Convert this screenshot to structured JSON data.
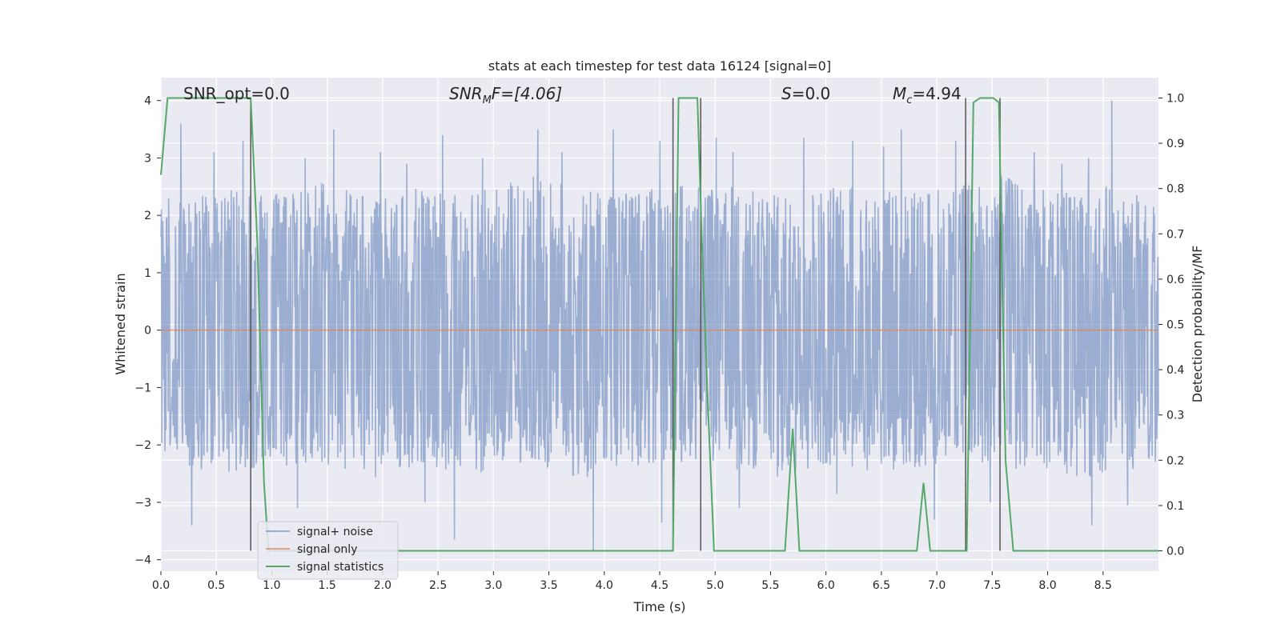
{
  "chart_data": {
    "type": "line",
    "title": "stats at each timestep for test data 16124 [signal=0]",
    "xlabel": "Time (s)",
    "ylabel": "Whitened strain",
    "y2label": "Detection probability/MF",
    "xlim": [
      0.0,
      9.0
    ],
    "ylim": [
      -4.2,
      4.4
    ],
    "y2lim": [
      -0.045,
      1.045
    ],
    "x_ticks": [
      "0.0",
      "0.5",
      "1.0",
      "1.5",
      "2.0",
      "2.5",
      "3.0",
      "3.5",
      "4.0",
      "4.5",
      "5.0",
      "5.5",
      "6.0",
      "6.5",
      "7.0",
      "7.5",
      "8.0",
      "8.5"
    ],
    "y_ticks": [
      "4",
      "3",
      "2",
      "1",
      "0",
      "−1",
      "−2",
      "−3",
      "−4"
    ],
    "y2_ticks": [
      "1.0",
      "0.9",
      "0.8",
      "0.7",
      "0.6",
      "0.5",
      "0.4",
      "0.3",
      "0.2",
      "0.1",
      "0.0"
    ],
    "grid": true,
    "legend_position": "lower-left",
    "annotations": {
      "snr_opt": "SNR_opt=0.0",
      "snr_mf_main": "SNR",
      "snr_mf_sub": "M",
      "snr_mf_rest": "F=[4.06]",
      "s_main": "S",
      "s_rest": "=0.0",
      "mc_main": "M",
      "mc_sub": "c",
      "mc_rest": "=4.94"
    },
    "series": [
      {
        "name": "signal+ noise",
        "color": "#4c72b0",
        "description_range": [
          -3.85,
          3.9
        ],
        "envelope_upper": [
          2.2,
          2.5,
          2.4,
          2.6,
          2.3,
          2.5,
          2.4,
          2.7,
          2.5,
          2.4,
          2.6,
          2.5,
          2.3,
          2.6,
          2.4,
          2.5,
          2.7,
          2.4,
          2.5,
          2.3
        ],
        "envelope_lower": [
          -2.2,
          -2.5,
          -2.4,
          -2.3,
          -2.6,
          -2.4,
          -2.5,
          -2.3,
          -2.6,
          -2.4,
          -2.3,
          -2.5,
          -2.6,
          -2.4,
          -2.5,
          -2.3,
          -2.4,
          -2.5,
          -2.6,
          -2.3
        ],
        "peaks": [
          [
            0.07,
            2.3
          ],
          [
            0.18,
            3.6
          ],
          [
            0.48,
            3.1
          ],
          [
            0.74,
            3.3
          ],
          [
            1.3,
            3.0
          ],
          [
            1.56,
            3.5
          ],
          [
            1.98,
            3.1
          ],
          [
            2.22,
            2.9
          ],
          [
            2.54,
            3.4
          ],
          [
            2.9,
            3.0
          ],
          [
            3.4,
            3.5
          ],
          [
            3.62,
            3.1
          ],
          [
            4.08,
            3.5
          ],
          [
            4.5,
            3.3
          ],
          [
            5.01,
            3.35
          ],
          [
            5.16,
            3.1
          ],
          [
            5.8,
            3.35
          ],
          [
            6.24,
            3.3
          ],
          [
            6.52,
            3.2
          ],
          [
            6.68,
            3.5
          ],
          [
            7.17,
            3.3
          ],
          [
            7.88,
            3.1
          ],
          [
            8.13,
            2.9
          ],
          [
            8.37,
            3.0
          ],
          [
            8.58,
            4.0
          ]
        ],
        "troughs": [
          [
            0.28,
            -3.4
          ],
          [
            1.23,
            -3.1
          ],
          [
            2.38,
            -3.0
          ],
          [
            2.65,
            -3.65
          ],
          [
            3.9,
            -3.85
          ],
          [
            4.52,
            -3.35
          ],
          [
            5.22,
            -3.1
          ],
          [
            6.1,
            -2.85
          ],
          [
            6.98,
            -3.3
          ],
          [
            7.48,
            -3.0
          ],
          [
            8.4,
            -3.4
          ],
          [
            8.72,
            -3.05
          ]
        ]
      },
      {
        "name": "signal only",
        "color": "#dd8452",
        "x": [
          0.0,
          9.0
        ],
        "y": [
          0.0,
          0.0
        ]
      },
      {
        "name": "signal statistics",
        "color": "#55a868",
        "axis": "right",
        "x": [
          0.0,
          0.06,
          0.12,
          0.75,
          0.81,
          0.87,
          0.93,
          0.97,
          4.5,
          4.62,
          4.67,
          4.72,
          4.84,
          4.88,
          4.93,
          4.99,
          5.55,
          5.63,
          5.7,
          5.76,
          5.82,
          5.88,
          6.74,
          6.82,
          6.88,
          6.94,
          7.0,
          7.27,
          7.33,
          7.39,
          7.45,
          7.51,
          7.56,
          7.62,
          7.69,
          7.75,
          9.0
        ],
        "y": [
          0.83,
          1.0,
          1.0,
          1.0,
          1.0,
          0.68,
          0.15,
          0.0,
          0.0,
          0.0,
          1.0,
          1.0,
          1.0,
          0.69,
          0.35,
          0.0,
          0.0,
          0.0,
          0.27,
          0.0,
          0.0,
          0.0,
          0.0,
          0.0,
          0.15,
          0.0,
          0.0,
          0.0,
          0.99,
          1.0,
          1.0,
          1.0,
          0.99,
          0.2,
          0.0,
          0.0,
          0.0
        ]
      }
    ],
    "vertical_lines": [
      0.81,
      4.62,
      4.87,
      7.26,
      7.57
    ],
    "vertical_line_range": [
      -0.0,
      1.0
    ],
    "legend": [
      "signal+ noise",
      "signal only",
      "signal statistics"
    ]
  }
}
